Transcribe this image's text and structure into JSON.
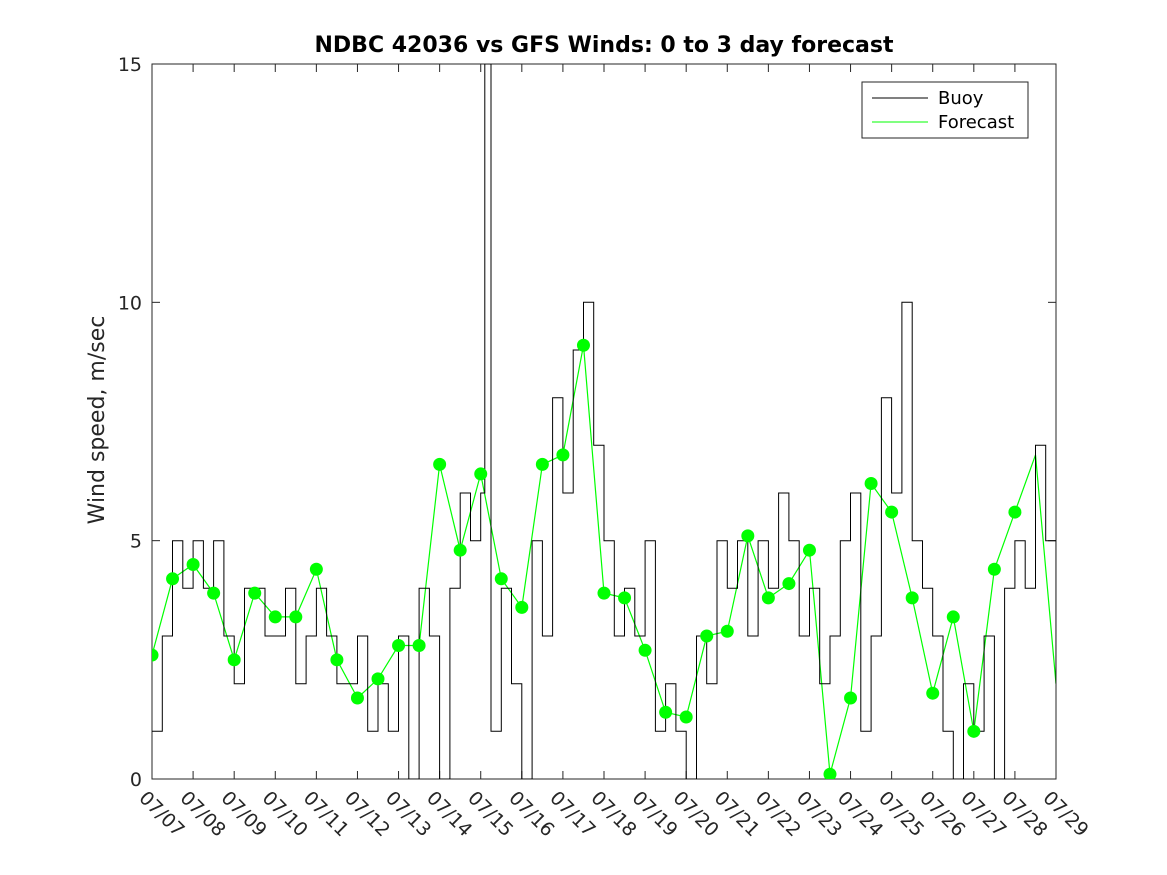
{
  "chart_data": {
    "type": "line",
    "title": "NDBC 42036 vs GFS Winds: 0 to 3 day forecast",
    "ylabel": "Wind speed, m/sec",
    "xlabel": "",
    "ylim": [
      0,
      15
    ],
    "yticks": [
      0,
      5,
      10,
      15
    ],
    "x_tick_labels": [
      "07/07",
      "07/08",
      "07/09",
      "07/10",
      "07/11",
      "07/12",
      "07/13",
      "07/14",
      "07/15",
      "07/16",
      "07/17",
      "07/18",
      "07/19",
      "07/20",
      "07/21",
      "07/22",
      "07/23",
      "07/24",
      "07/25",
      "07/26",
      "07/27",
      "07/28",
      "07/29"
    ],
    "legend": {
      "placement": "top-right",
      "entries": [
        "Buoy",
        "Forecast"
      ]
    },
    "colors": {
      "buoy": "#000000",
      "forecast": "#00ff00",
      "axis": "#262626"
    },
    "series": [
      {
        "name": "Buoy",
        "x_days": [
          0.0,
          0.25,
          0.5,
          0.75,
          1.0,
          1.25,
          1.5,
          1.75,
          2.0,
          2.25,
          2.5,
          2.75,
          3.0,
          3.25,
          3.5,
          3.75,
          4.0,
          4.25,
          4.5,
          4.75,
          5.0,
          5.25,
          5.5,
          5.75,
          6.0,
          6.25,
          6.5,
          6.75,
          7.0,
          7.25,
          7.5,
          7.75,
          8.0,
          8.1,
          8.25,
          8.5,
          8.75,
          9.0,
          9.25,
          9.5,
          9.75,
          10.0,
          10.25,
          10.5,
          10.75,
          11.0,
          11.25,
          11.5,
          11.75,
          12.0,
          12.25,
          12.5,
          12.75,
          13.0,
          13.25,
          13.5,
          13.75,
          14.0,
          14.25,
          14.5,
          14.75,
          15.0,
          15.25,
          15.5,
          15.75,
          16.0,
          16.25,
          16.5,
          16.75,
          17.0,
          17.25,
          17.5,
          17.75,
          18.0,
          18.25,
          18.5,
          18.75,
          19.0,
          19.25,
          19.5,
          19.75,
          20.0,
          20.25,
          20.5,
          20.75,
          21.0,
          21.25,
          21.5,
          21.75,
          22.0
        ],
        "values": [
          1,
          3,
          5,
          4,
          5,
          4,
          5,
          3,
          2,
          4,
          4,
          3,
          3,
          4,
          2,
          3,
          4,
          3,
          2,
          2,
          3,
          1,
          2,
          1,
          3,
          0,
          4,
          3,
          0,
          4,
          6,
          5,
          6,
          15,
          1,
          4,
          2,
          0,
          5,
          3,
          8,
          6,
          9,
          10,
          7,
          5,
          3,
          4,
          3,
          5,
          1,
          2,
          1,
          0,
          3,
          2,
          5,
          4,
          5,
          3,
          5,
          4,
          6,
          5,
          3,
          4,
          2,
          3,
          5,
          6,
          1,
          3,
          8,
          6,
          10,
          5,
          4,
          3,
          1,
          0,
          2,
          1,
          3,
          0,
          4,
          5,
          4,
          7,
          5,
          2
        ]
      },
      {
        "name": "Forecast",
        "x_days": [
          0.0,
          0.5,
          1.0,
          1.5,
          2.0,
          2.5,
          3.0,
          3.5,
          4.0,
          4.5,
          5.0,
          5.5,
          6.0,
          6.5,
          7.0,
          7.5,
          8.0,
          8.5,
          9.0,
          9.5,
          10.0,
          10.5,
          11.0,
          11.5,
          12.0,
          12.5,
          13.0,
          13.5,
          14.0,
          14.5,
          15.0,
          15.5,
          16.0,
          16.5,
          17.0,
          17.5,
          18.0,
          18.5,
          19.0,
          19.5,
          20.0,
          20.5,
          21.0,
          21.5,
          22.0
        ],
        "values": [
          2.6,
          4.2,
          4.5,
          3.9,
          2.5,
          3.9,
          3.4,
          3.4,
          4.4,
          2.5,
          1.7,
          2.1,
          2.8,
          2.8,
          6.6,
          4.8,
          6.4,
          4.2,
          3.6,
          6.6,
          6.8,
          9.1,
          3.9,
          3.8,
          2.7,
          1.4,
          1.3,
          3.0,
          3.1,
          5.1,
          3.8,
          4.1,
          4.8,
          0.1,
          1.7,
          6.2,
          5.6,
          3.8,
          1.8,
          3.4,
          1.0,
          4.4,
          5.6,
          6.8,
          2.0
        ]
      }
    ],
    "markers": {
      "name": "Forecast",
      "x_days": [
        0.0,
        0.5,
        1.0,
        1.5,
        2.0,
        2.5,
        3.0,
        3.5,
        4.0,
        4.5,
        5.0,
        5.5,
        6.0,
        6.5,
        7.0,
        7.5,
        8.0,
        8.5,
        9.0,
        9.5,
        10.0,
        10.5,
        11.0,
        11.5,
        12.0,
        12.5,
        13.0,
        13.5,
        14.0,
        14.5,
        15.0,
        15.5,
        16.0,
        16.5,
        17.0,
        17.5,
        18.0,
        18.5,
        19.0,
        19.5,
        20.0,
        20.5,
        21.0
      ],
      "values": [
        2.6,
        4.2,
        4.5,
        3.9,
        2.5,
        3.9,
        3.4,
        3.4,
        4.4,
        2.5,
        1.7,
        2.1,
        2.8,
        2.8,
        6.6,
        4.8,
        6.4,
        4.2,
        3.6,
        6.6,
        6.8,
        9.1,
        3.9,
        3.8,
        2.7,
        1.4,
        1.3,
        3.0,
        3.1,
        5.1,
        3.8,
        4.1,
        4.8,
        0.1,
        1.7,
        6.2,
        5.6,
        3.8,
        1.8,
        3.4,
        1.0,
        4.4,
        5.6
      ]
    }
  }
}
